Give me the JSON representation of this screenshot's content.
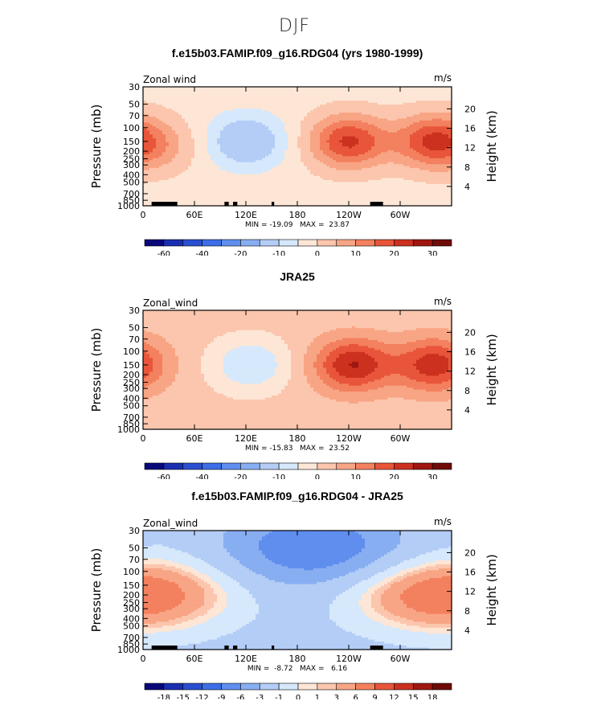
{
  "suptitle": "DJF",
  "colors": {
    "palette_full": [
      "#08087a",
      "#1a2fb0",
      "#2a4fd0",
      "#3d6ee8",
      "#5f8eee",
      "#88aef2",
      "#b3cdf6",
      "#d6e8fb",
      "#fde6d6",
      "#fbc6ad",
      "#f8a585",
      "#f3805e",
      "#e8553a",
      "#cc301f",
      "#9f1710",
      "#6e0b08"
    ],
    "palette_diff": [
      "#08087a",
      "#1a2fb0",
      "#2a4fd0",
      "#3d6ee8",
      "#5f8eee",
      "#88aef2",
      "#b3cdf6",
      "#d6e8fb",
      "#fde6d6",
      "#fbc6ad",
      "#f8a585",
      "#f3805e",
      "#e8553a",
      "#cc301f",
      "#9f1710",
      "#6e0b08"
    ]
  },
  "chart_data": [
    {
      "type": "heatmap",
      "title": "f.e15b03.FAMIP.f09_g16.RDG04 (yrs 1980-1999)",
      "variable_label": "Zonal wind",
      "units": "m/s",
      "ylabel": "Pressure (mb)",
      "ylabel_right": "Height (km)",
      "x_ticks": [
        "0",
        "60E",
        "120E",
        "180",
        "120W",
        "60W"
      ],
      "y_ticks": [
        "30",
        "50",
        "70",
        "100",
        "150",
        "200",
        "250",
        "300",
        "400",
        "500",
        "700",
        "850",
        "1000"
      ],
      "y_ticks_right": [
        "20",
        "16",
        "12",
        "8",
        "4"
      ],
      "min_max_text": "MIN = -19.09   MAX =  23.87",
      "colorbar_labels": [
        "-60",
        "-40",
        "-20",
        "-10",
        "0",
        "10",
        "20",
        "30"
      ],
      "features": [
        {
          "lon": 120,
          "p": 150,
          "value": -15
        },
        {
          "lon": 240,
          "p": 150,
          "value": 23
        },
        {
          "lon": 340,
          "p": 150,
          "value": 23
        },
        {
          "lon": 30,
          "p": 175,
          "value": 5
        }
      ],
      "background_value": -2,
      "has_topography": true
    },
    {
      "type": "heatmap",
      "title": "JRA25",
      "variable_label": "Zonal_wind",
      "units": "m/s",
      "ylabel": "Pressure (mb)",
      "ylabel_right": "Height (km)",
      "x_ticks": [
        "0",
        "60E",
        "120E",
        "180",
        "120W",
        "60W"
      ],
      "y_ticks": [
        "30",
        "50",
        "70",
        "100",
        "150",
        "200",
        "250",
        "300",
        "400",
        "500",
        "700",
        "850",
        "1000"
      ],
      "y_ticks_right": [
        "20",
        "16",
        "12",
        "8",
        "4"
      ],
      "min_max_text": "MIN = -15.83   MAX =  23.52",
      "colorbar_labels": [
        "-60",
        "-40",
        "-20",
        "-10",
        "0",
        "10",
        "20",
        "30"
      ],
      "features": [
        {
          "lon": 125,
          "p": 150,
          "value": -12
        },
        {
          "lon": 245,
          "p": 150,
          "value": 23
        },
        {
          "lon": 340,
          "p": 150,
          "value": 21
        }
      ],
      "background_value": 2,
      "has_topography": false
    },
    {
      "type": "heatmap",
      "title": "f.e15b03.FAMIP.f09_g16.RDG04 - JRA25",
      "variable_label": "Zonal_wind",
      "units": "m/s",
      "ylabel": "Pressure (mb)",
      "ylabel_right": "Height (km)",
      "x_ticks": [
        "0",
        "60E",
        "120E",
        "180",
        "120W",
        "60W"
      ],
      "y_ticks": [
        "30",
        "50",
        "70",
        "100",
        "150",
        "200",
        "250",
        "300",
        "400",
        "500",
        "700",
        "850",
        "1000"
      ],
      "y_ticks_right": [
        "20",
        "16",
        "12",
        "8",
        "4"
      ],
      "min_max_text": "MIN =  -8.72   MAX =   6.16",
      "colorbar_labels": [
        "-18",
        "-15",
        "-12",
        "-9",
        "-6",
        "-3",
        "-1",
        "0",
        "1",
        "3",
        "6",
        "9",
        "12",
        "15",
        "18"
      ],
      "features": [
        {
          "lon": 200,
          "p": 50,
          "value": -8
        },
        {
          "lon": 335,
          "p": 200,
          "value": 6
        },
        {
          "lon": 20,
          "p": 200,
          "value": 4
        }
      ],
      "background_value": -4,
      "has_topography": true
    }
  ]
}
